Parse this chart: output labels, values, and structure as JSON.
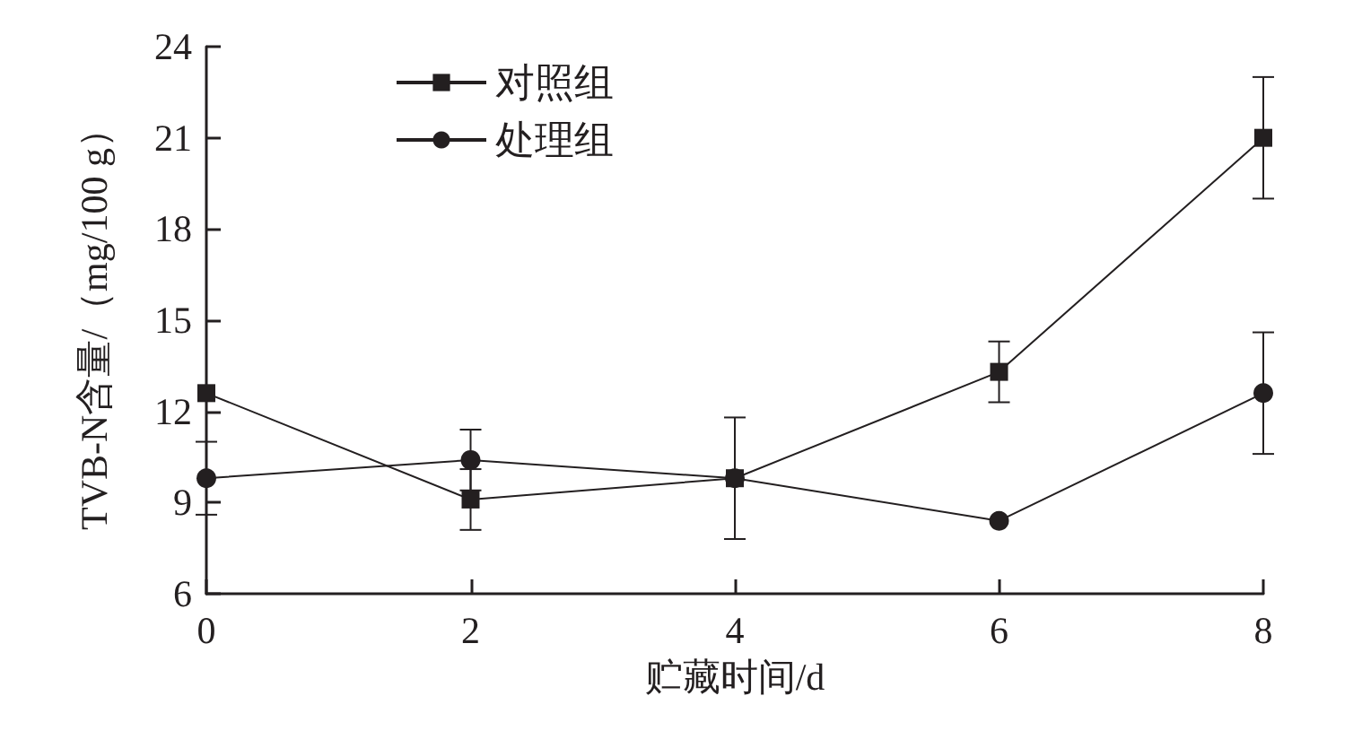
{
  "chart_data": {
    "type": "line",
    "xlabel": "贮藏时间/d",
    "ylabel": "TVB-N含量/（mg/100 g）",
    "x": [
      0,
      2,
      4,
      6,
      8
    ],
    "xlim": [
      0,
      8
    ],
    "xticks": [
      0,
      2,
      4,
      6,
      8
    ],
    "ylim": [
      6,
      24
    ],
    "yticks": [
      6,
      9,
      12,
      15,
      18,
      21,
      24
    ],
    "grid": false,
    "legend": "top left",
    "line_style": "solid",
    "series": [
      {
        "name": "对照组",
        "color": "#231f20",
        "marker": "square",
        "values": [
          12.6,
          9.1,
          9.8,
          13.3,
          21
        ],
        "errors": [
          null,
          1.0,
          2.0,
          1.0,
          2.0
        ]
      },
      {
        "name": "处理组",
        "color": "#231f20",
        "marker": "circle",
        "values": [
          9.8,
          10.4,
          9.8,
          8.4,
          12.6
        ],
        "errors": [
          1.2,
          1.0,
          null,
          null,
          2.0
        ]
      }
    ]
  }
}
